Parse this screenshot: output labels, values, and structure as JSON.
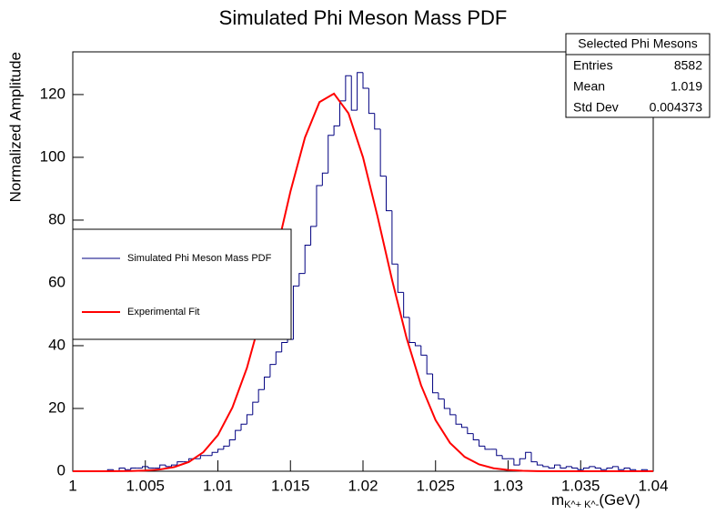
{
  "chart_data": {
    "type": "histogram",
    "title": "Simulated Phi Meson Mass PDF",
    "y_label": "Normalized Amplitude",
    "x_label": {
      "main": "m",
      "subscript": "K^+ K^-",
      "unit": "(GeV)"
    },
    "bins": [
      1,
      1.0004,
      1.0008,
      1.0012,
      1.0016,
      1.002,
      1.0024,
      1.0028,
      1.0032,
      1.0036,
      1.004,
      1.0044,
      1.0048,
      1.0052,
      1.0056,
      1.006,
      1.0064,
      1.0068,
      1.0072,
      1.0076,
      1.008,
      1.0084,
      1.0088,
      1.0092,
      1.0096,
      1.01,
      1.0104,
      1.0108,
      1.0112,
      1.0116,
      1.012,
      1.0124,
      1.0128,
      1.0132,
      1.0136,
      1.014,
      1.0144,
      1.0148,
      1.0152,
      1.0156,
      1.016,
      1.0164,
      1.0168,
      1.0172,
      1.0176,
      1.018,
      1.0184,
      1.0188,
      1.0192,
      1.0196,
      1.02,
      1.0204,
      1.0208,
      1.0212,
      1.0216,
      1.022,
      1.0224,
      1.0228,
      1.0232,
      1.0236,
      1.024,
      1.0244,
      1.0248,
      1.0252,
      1.0256,
      1.026,
      1.0264,
      1.0268,
      1.0272,
      1.0276,
      1.028,
      1.0284,
      1.0288,
      1.0292,
      1.0296,
      1.03,
      1.0304,
      1.0308,
      1.0312,
      1.0316,
      1.032,
      1.0324,
      1.0328,
      1.0332,
      1.0336,
      1.034,
      1.0344,
      1.0348,
      1.0352,
      1.0356,
      1.036,
      1.0364,
      1.0368,
      1.0372,
      1.0376,
      1.038,
      1.0384,
      1.0388,
      1.0392,
      1.0396,
      1.04
    ],
    "series": [
      {
        "name": "Simulated Phi Meson Mass PDF",
        "color": "#000080",
        "values": [
          0,
          0,
          0,
          0,
          0,
          0,
          0.5,
          0,
          1,
          0.5,
          1,
          1,
          1.5,
          1,
          1,
          2,
          1.5,
          2,
          3,
          3,
          4,
          4,
          5,
          5,
          6,
          7,
          8,
          10,
          13,
          15,
          18,
          22,
          26,
          30,
          34,
          38,
          41,
          42,
          59,
          63,
          72,
          78,
          91,
          95,
          107,
          110,
          118,
          126,
          115,
          127,
          122,
          114,
          109,
          94,
          83,
          66,
          57,
          49,
          41,
          40,
          37,
          31,
          25,
          23,
          20,
          18,
          15,
          14,
          12,
          10,
          8,
          7,
          7,
          5,
          4,
          4,
          2,
          4,
          6,
          3,
          2,
          1.5,
          1,
          2,
          1,
          1.5,
          1,
          0.5,
          1,
          1.5,
          1,
          0.5,
          1,
          1.5,
          0.5,
          1,
          0.5,
          0,
          0.5,
          0
        ]
      },
      {
        "name": "Experimental Fit",
        "type": "line",
        "color": "#ff0000",
        "x": [
          1,
          1.001,
          1.002,
          1.003,
          1.004,
          1.005,
          1.006,
          1.007,
          1.008,
          1.009,
          1.01,
          1.011,
          1.012,
          1.013,
          1.014,
          1.015,
          1.016,
          1.017,
          1.018,
          1.019,
          1.02,
          1.021,
          1.022,
          1.023,
          1.024,
          1.025,
          1.026,
          1.027,
          1.028,
          1.029,
          1.03,
          1.031,
          1.032,
          1.033,
          1.034,
          1.035,
          1.036,
          1.037,
          1.038,
          1.039,
          1.04
        ],
        "values": [
          0,
          0,
          0.01,
          0.03,
          0.08,
          0.22,
          0.56,
          1.34,
          2.96,
          6.07,
          11.5,
          20.3,
          32.9,
          49.6,
          69.1,
          89.1,
          106.3,
          117.6,
          120.3,
          114,
          100,
          81.2,
          61,
          42.5,
          27.4,
          16.3,
          9,
          4.6,
          2.18,
          0.95,
          0.39,
          0.14,
          0.05,
          0,
          0,
          0,
          0,
          0,
          0,
          0,
          0
        ]
      }
    ],
    "xlim": [
      1,
      1.04
    ],
    "ylim": [
      0,
      133.6
    ],
    "xticks": [
      1,
      1.005,
      1.01,
      1.015,
      1.02,
      1.025,
      1.03,
      1.035,
      1.04
    ],
    "yticks": [
      0,
      20,
      40,
      60,
      80,
      100,
      120
    ],
    "stats": {
      "title": "Selected Phi Mesons",
      "rows": [
        {
          "label": "Entries",
          "value": 8582
        },
        {
          "label": "Mean",
          "value": 1.019
        },
        {
          "label": "Std Dev",
          "value": 0.004373
        }
      ]
    }
  }
}
